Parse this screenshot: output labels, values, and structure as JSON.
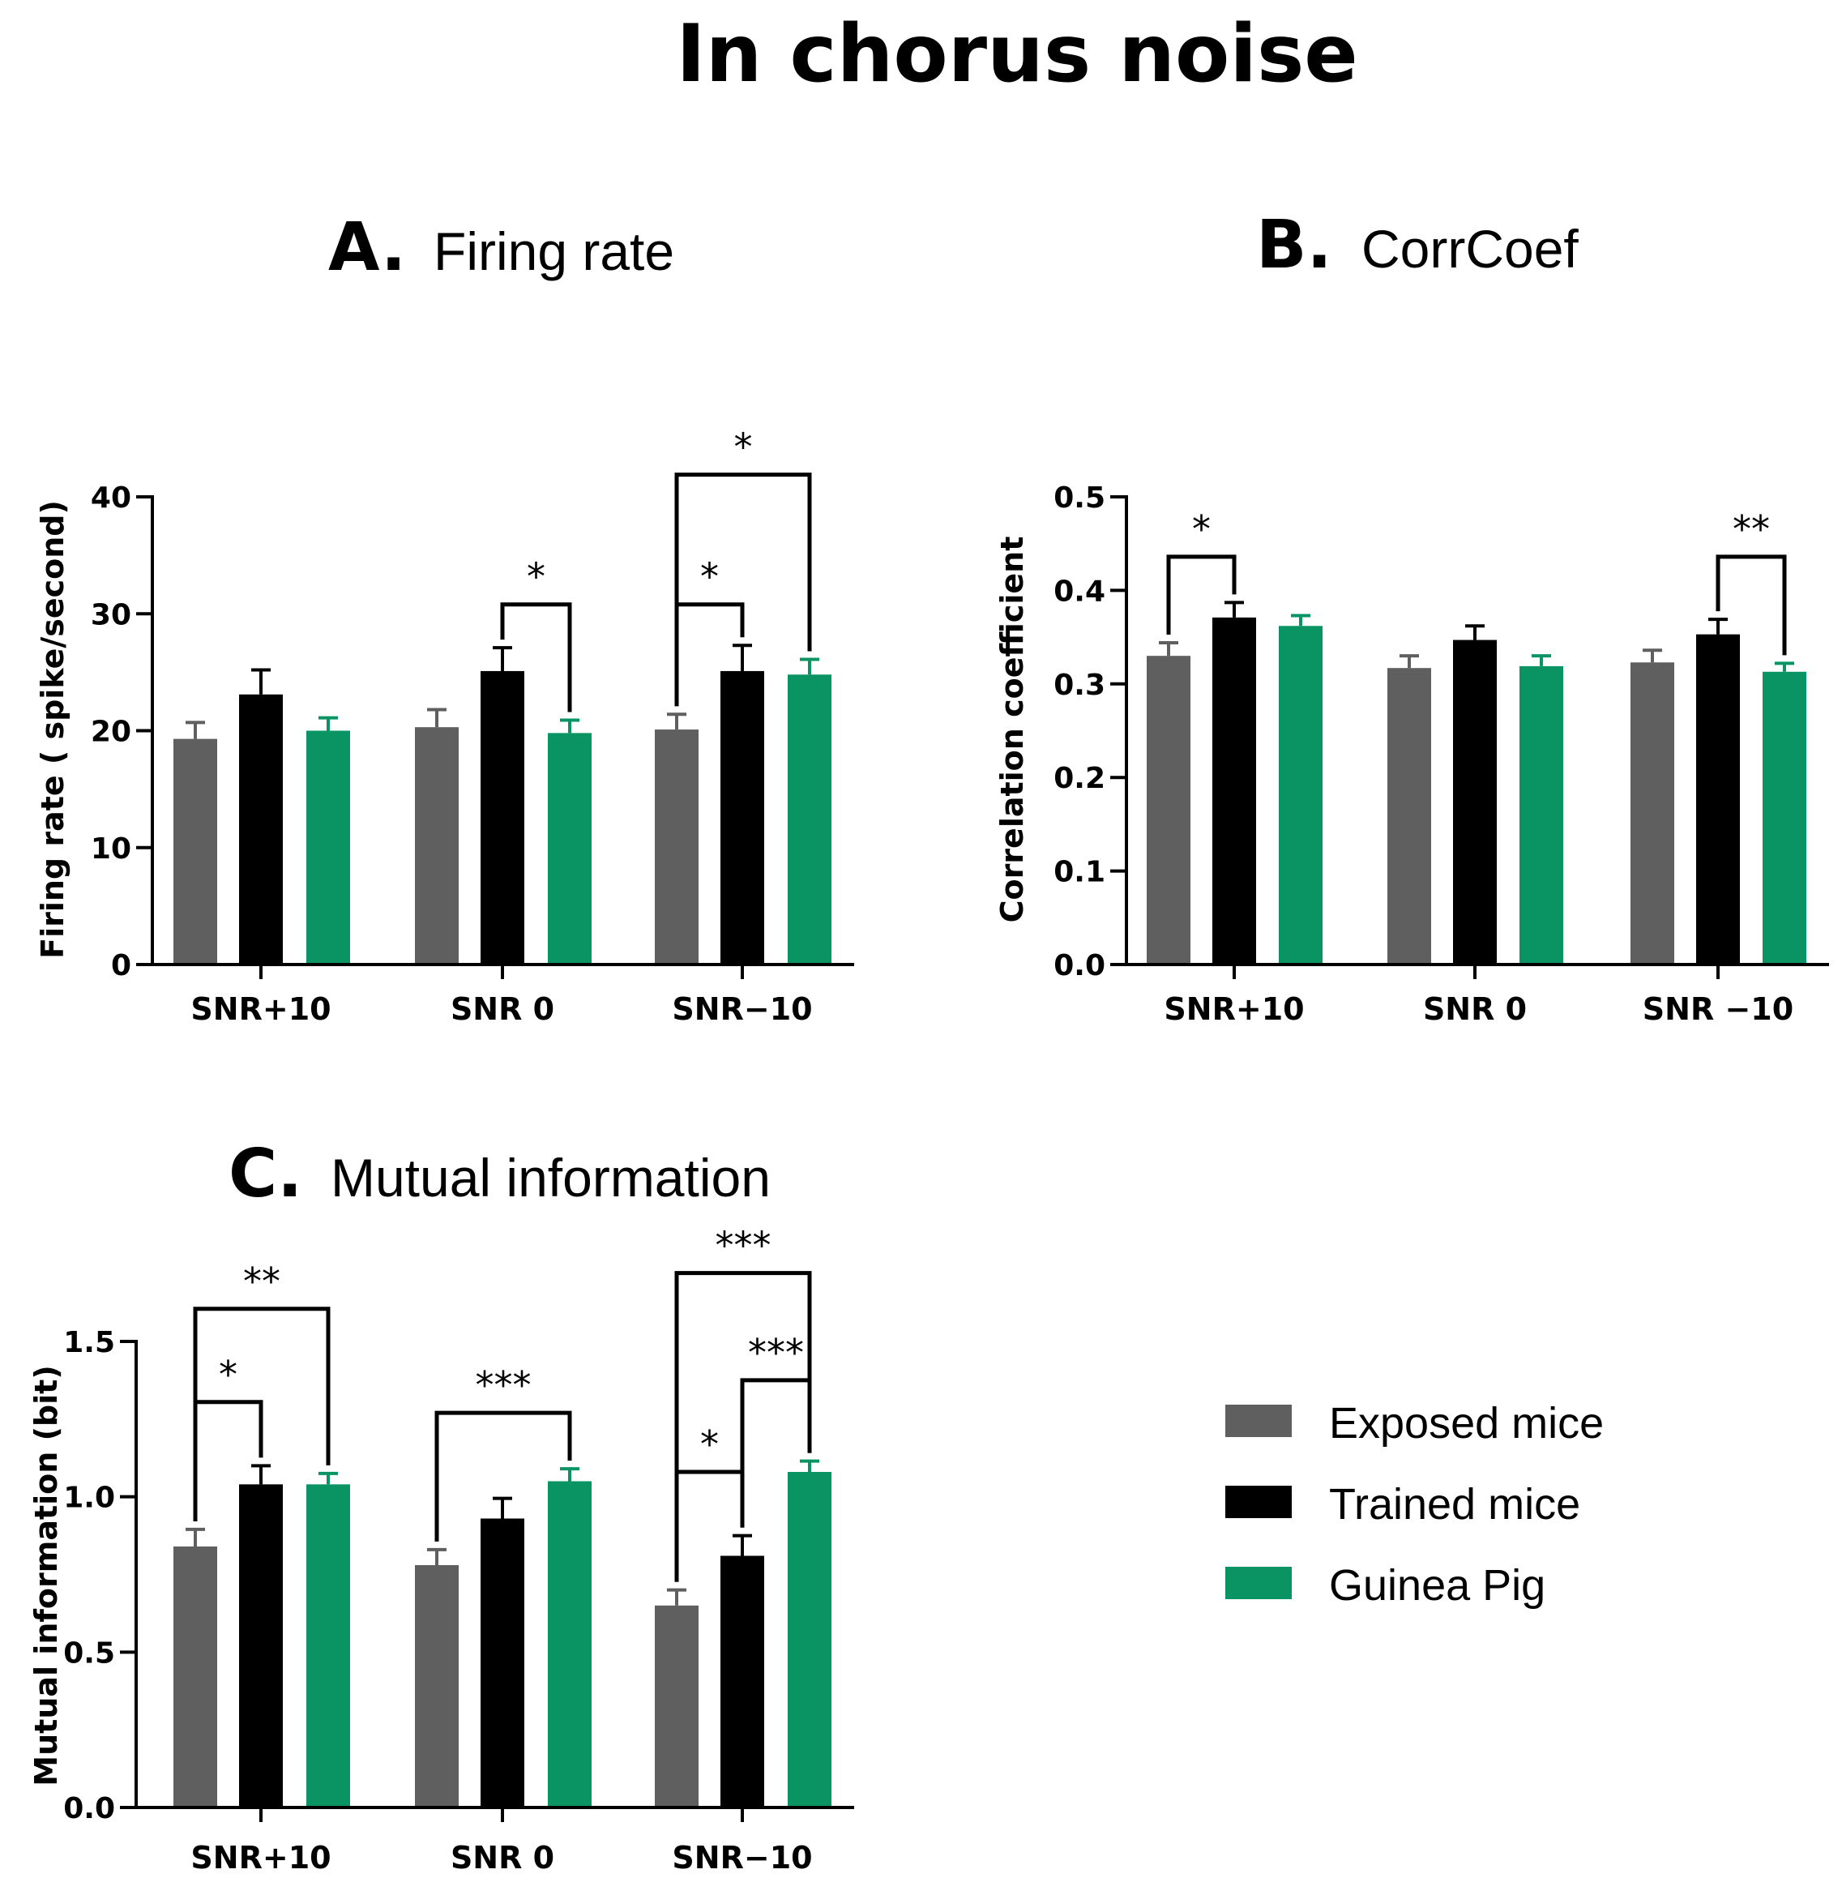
{
  "title": "In chorus noise",
  "colors": {
    "exposed": "#5f5f5f",
    "trained": "#000000",
    "guinea": "#0a9463",
    "axis": "#000000"
  },
  "legend": [
    {
      "label": "Exposed mice",
      "color": "#5f5f5f"
    },
    {
      "label": "Trained mice",
      "color": "#000000"
    },
    {
      "label": "Guinea Pig",
      "color": "#0a9463"
    }
  ],
  "chart_data": [
    {
      "id": "A",
      "type": "bar",
      "letter": "A.",
      "title": "Firing rate",
      "ylabel": "Firing rate ( spike/second)",
      "xlabel": "",
      "ylim": [
        0,
        40
      ],
      "yticks": [
        0,
        10,
        20,
        30,
        40
      ],
      "ytick_labels": [
        "0",
        "10",
        "20",
        "30",
        "40"
      ],
      "categories": [
        "SNR+10",
        "SNR 0",
        "SNR−10"
      ],
      "series": [
        {
          "name": "Exposed mice",
          "values": [
            19.3,
            20.3,
            20.1
          ],
          "errors": [
            1.4,
            1.5,
            1.3
          ]
        },
        {
          "name": "Trained mice",
          "values": [
            23.1,
            25.1,
            25.1
          ],
          "errors": [
            2.1,
            2.0,
            2.2
          ]
        },
        {
          "name": "Guinea Pig",
          "values": [
            20.0,
            19.8,
            24.8
          ],
          "errors": [
            1.1,
            1.1,
            1.3
          ]
        }
      ],
      "significance": [
        {
          "label": "*",
          "from": [
            1,
            1
          ],
          "to": [
            1,
            2
          ],
          "level": 30.8
        },
        {
          "label": "*",
          "from": [
            2,
            0
          ],
          "to": [
            2,
            1
          ],
          "level": 30.8
        },
        {
          "label": "*",
          "from": [
            2,
            0
          ],
          "to": [
            2,
            2
          ],
          "level": 41.9
        }
      ]
    },
    {
      "id": "B",
      "type": "bar",
      "letter": "B.",
      "title": "CorrCoef",
      "ylabel": "Correlation coefficient",
      "xlabel": "",
      "ylim": [
        0,
        0.5
      ],
      "yticks": [
        0,
        0.1,
        0.2,
        0.3,
        0.4,
        0.5
      ],
      "ytick_labels": [
        "0.0",
        "0.1",
        "0.2",
        "0.3",
        "0.4",
        "0.5"
      ],
      "categories": [
        "SNR+10",
        "SNR 0",
        "SNR −10"
      ],
      "series": [
        {
          "name": "Exposed mice",
          "values": [
            0.33,
            0.317,
            0.323
          ],
          "errors": [
            0.014,
            0.013,
            0.013
          ]
        },
        {
          "name": "Trained mice",
          "values": [
            0.371,
            0.347,
            0.353
          ],
          "errors": [
            0.016,
            0.015,
            0.016
          ]
        },
        {
          "name": "Guinea Pig",
          "values": [
            0.362,
            0.319,
            0.313
          ],
          "errors": [
            0.011,
            0.011,
            0.009
          ]
        }
      ],
      "significance": [
        {
          "label": "*",
          "from": [
            0,
            0
          ],
          "to": [
            0,
            1
          ],
          "level": 0.436
        },
        {
          "label": "**",
          "from": [
            2,
            1
          ],
          "to": [
            2,
            2
          ],
          "level": 0.436
        }
      ]
    },
    {
      "id": "C",
      "type": "bar",
      "letter": "C.",
      "title": "Mutual information",
      "ylabel": "Mutual information (bit)",
      "xlabel": "",
      "ylim": [
        0,
        1.5
      ],
      "yticks": [
        0,
        0.5,
        1.0,
        1.5
      ],
      "ytick_labels": [
        "0.0",
        "0.5",
        "1.0",
        "1.5"
      ],
      "categories": [
        "SNR+10",
        "SNR 0",
        "SNR−10"
      ],
      "series": [
        {
          "name": "Exposed mice",
          "values": [
            0.84,
            0.78,
            0.65
          ],
          "errors": [
            0.055,
            0.05,
            0.05
          ]
        },
        {
          "name": "Trained mice",
          "values": [
            1.04,
            0.93,
            0.81
          ],
          "errors": [
            0.06,
            0.065,
            0.065
          ]
        },
        {
          "name": "Guinea Pig",
          "values": [
            1.04,
            1.05,
            1.08
          ],
          "errors": [
            0.035,
            0.04,
            0.035
          ]
        }
      ],
      "significance": [
        {
          "label": "*",
          "from": [
            0,
            0
          ],
          "to": [
            0,
            1
          ],
          "level": 1.305
        },
        {
          "label": "**",
          "from": [
            0,
            0
          ],
          "to": [
            0,
            2
          ],
          "level": 1.605
        },
        {
          "label": "***",
          "from": [
            1,
            0
          ],
          "to": [
            1,
            2
          ],
          "level": 1.27
        },
        {
          "label": "*",
          "from": [
            2,
            0
          ],
          "to": [
            2,
            1
          ],
          "level": 1.08
        },
        {
          "label": "***",
          "from": [
            2,
            1
          ],
          "to": [
            2,
            2
          ],
          "level": 1.375
        },
        {
          "label": "***",
          "from": [
            2,
            0
          ],
          "to": [
            2,
            2
          ],
          "level": 1.72
        }
      ]
    }
  ]
}
